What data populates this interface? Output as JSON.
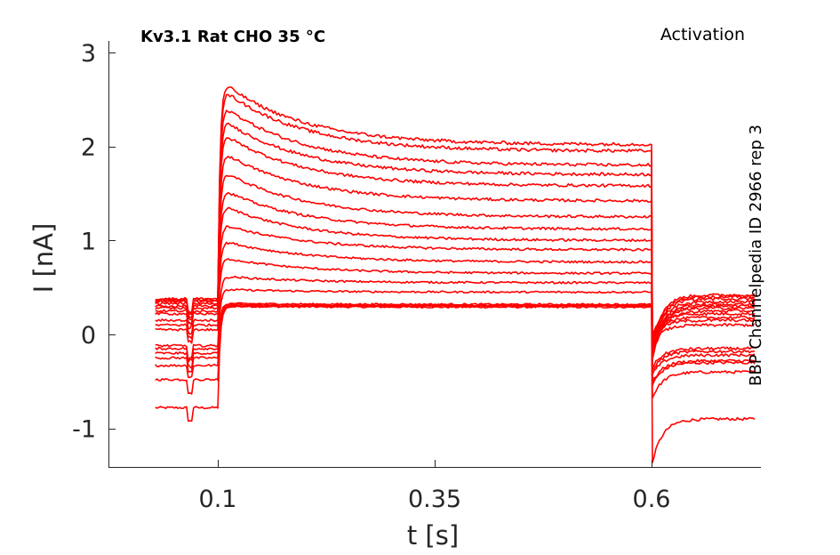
{
  "chart_data": {
    "type": "line",
    "title": "Kv3.1  Rat  CHO  35 °C",
    "protocol": "Activation",
    "side_label": "BBP Channelpedia ID 2966 rep 3",
    "xlabel": "t [s]",
    "ylabel": "I [nA]",
    "xlim": [
      0.0,
      0.75
    ],
    "ylim": [
      -1.4,
      3.1
    ],
    "xticks": [
      0.1,
      0.35,
      0.6
    ],
    "xtick_labels": [
      "0.1",
      "0.35",
      "0.6"
    ],
    "yticks": [
      -1,
      0,
      1,
      2,
      3
    ],
    "ytick_labels": [
      "-1",
      "0",
      "1",
      "2",
      "3"
    ],
    "grid": false,
    "color": "#ff0000",
    "step_on": 0.1,
    "step_off": 0.6,
    "x_end": 0.72,
    "series": [
      {
        "pre": -0.78,
        "peak": 0.3,
        "steady": 0.29,
        "tail": -0.9
      },
      {
        "pre": -0.48,
        "peak": 0.3,
        "steady": 0.3,
        "tail": -0.4
      },
      {
        "pre": -0.33,
        "peak": 0.31,
        "steady": 0.31,
        "tail": -0.3
      },
      {
        "pre": -0.25,
        "peak": 0.32,
        "steady": 0.31,
        "tail": -0.28
      },
      {
        "pre": -0.2,
        "peak": 0.33,
        "steady": 0.32,
        "tail": -0.22
      },
      {
        "pre": -0.15,
        "peak": 0.48,
        "steady": 0.45,
        "tail": -0.18
      },
      {
        "pre": -0.12,
        "peak": 0.62,
        "steady": 0.55,
        "tail": -0.15
      },
      {
        "pre": 0.05,
        "peak": 0.82,
        "steady": 0.65,
        "tail": 0.1
      },
      {
        "pre": 0.1,
        "peak": 1.0,
        "steady": 0.77,
        "tail": 0.15
      },
      {
        "pre": 0.15,
        "peak": 1.18,
        "steady": 0.9,
        "tail": 0.18
      },
      {
        "pre": 0.22,
        "peak": 1.38,
        "steady": 1.0,
        "tail": 0.22
      },
      {
        "pre": 0.25,
        "peak": 1.55,
        "steady": 1.12,
        "tail": 0.25
      },
      {
        "pre": 0.28,
        "peak": 1.75,
        "steady": 1.25,
        "tail": 0.28
      },
      {
        "pre": 0.3,
        "peak": 1.95,
        "steady": 1.42,
        "tail": 0.3
      },
      {
        "pre": 0.33,
        "peak": 2.15,
        "steady": 1.58,
        "tail": 0.32
      },
      {
        "pre": 0.35,
        "peak": 2.3,
        "steady": 1.7,
        "tail": 0.35
      },
      {
        "pre": 0.36,
        "peak": 2.45,
        "steady": 1.8,
        "tail": 0.38
      },
      {
        "pre": 0.37,
        "peak": 2.62,
        "steady": 1.95,
        "tail": 0.4
      },
      {
        "pre": 0.38,
        "peak": 2.7,
        "steady": 2.02,
        "tail": 0.42
      }
    ]
  }
}
